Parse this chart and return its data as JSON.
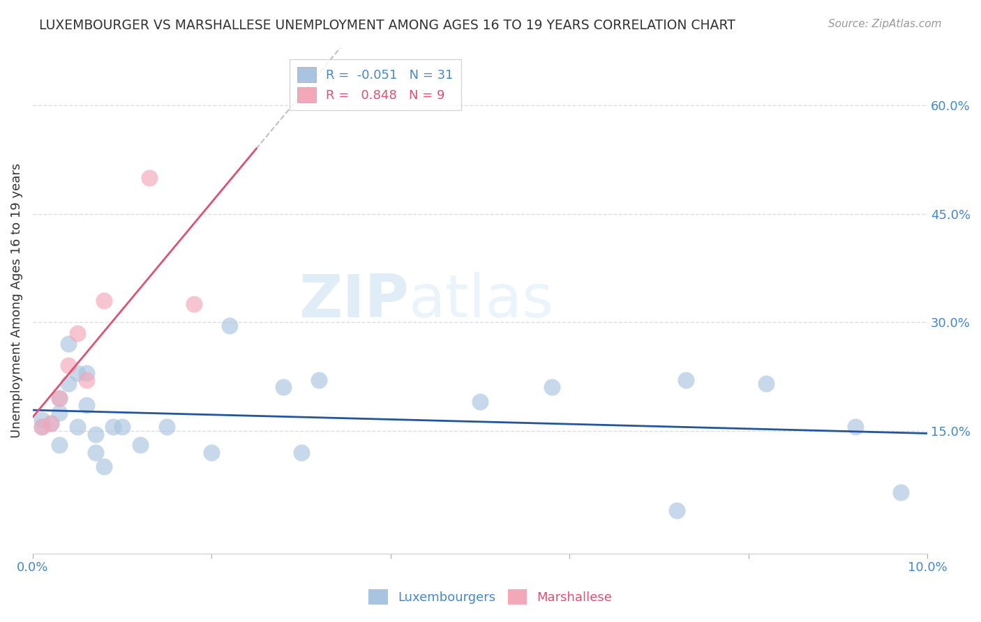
{
  "title": "LUXEMBOURGER VS MARSHALLESE UNEMPLOYMENT AMONG AGES 16 TO 19 YEARS CORRELATION CHART",
  "source": "Source: ZipAtlas.com",
  "ylabel": "Unemployment Among Ages 16 to 19 years",
  "xlim": [
    0.0,
    0.1
  ],
  "ylim": [
    -0.02,
    0.68
  ],
  "yticks_right": [
    0.15,
    0.3,
    0.45,
    0.6
  ],
  "ytick_labels_right": [
    "15.0%",
    "30.0%",
    "45.0%",
    "60.0%"
  ],
  "xtick_positions": [
    0.0,
    0.02,
    0.04,
    0.06,
    0.08,
    0.1
  ],
  "xtick_labels_show": [
    "0.0%",
    "",
    "",
    "",
    "",
    "10.0%"
  ],
  "lux_color": "#a8c4e0",
  "marsh_color": "#f4a7b9",
  "lux_line_color": "#2255a0",
  "marsh_line_color": "#e05070",
  "gray_dash_color": "#c0c0c0",
  "lux_R": -0.051,
  "lux_N": 31,
  "marsh_R": 0.848,
  "marsh_N": 9,
  "lux_x": [
    0.001,
    0.001,
    0.002,
    0.003,
    0.003,
    0.003,
    0.004,
    0.004,
    0.005,
    0.005,
    0.006,
    0.006,
    0.007,
    0.007,
    0.008,
    0.009,
    0.01,
    0.012,
    0.015,
    0.02,
    0.022,
    0.028,
    0.03,
    0.032,
    0.05,
    0.058,
    0.072,
    0.073,
    0.082,
    0.092,
    0.097
  ],
  "lux_y": [
    0.155,
    0.165,
    0.16,
    0.13,
    0.195,
    0.175,
    0.27,
    0.215,
    0.23,
    0.155,
    0.23,
    0.185,
    0.12,
    0.145,
    0.1,
    0.155,
    0.155,
    0.13,
    0.155,
    0.12,
    0.295,
    0.21,
    0.12,
    0.22,
    0.19,
    0.21,
    0.04,
    0.22,
    0.215,
    0.155,
    0.065
  ],
  "marsh_x": [
    0.001,
    0.002,
    0.003,
    0.004,
    0.005,
    0.006,
    0.008,
    0.013,
    0.018
  ],
  "marsh_y": [
    0.155,
    0.16,
    0.195,
    0.24,
    0.285,
    0.22,
    0.33,
    0.5,
    0.325
  ],
  "watermark_zip": "ZIP",
  "watermark_atlas": "atlas",
  "background_color": "#ffffff",
  "grid_color": "#dddddd"
}
